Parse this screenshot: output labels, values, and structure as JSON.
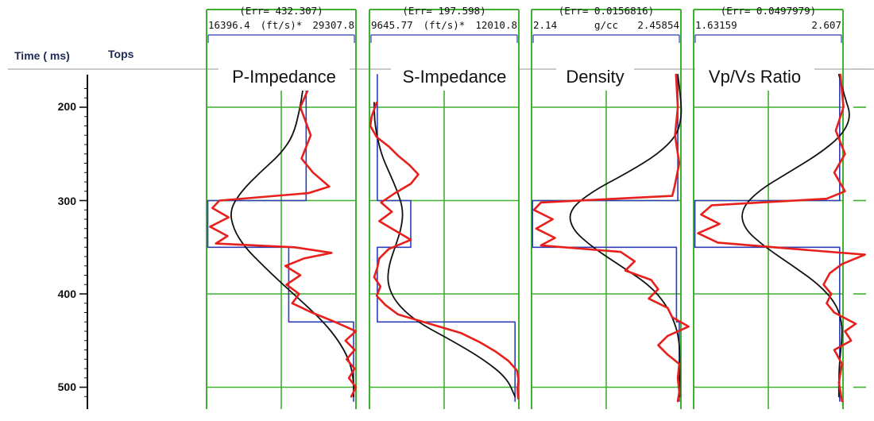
{
  "header": {
    "time_label": "Time ( ms)",
    "tops_label": "Tops"
  },
  "time_axis": {
    "ticks": [
      "200",
      "300",
      "400",
      "500"
    ]
  },
  "colors": {
    "grid": "#3fb02f",
    "model": "#2f3cb5",
    "inversion": "#e8201c",
    "initial": "#111111",
    "separator": "#aaaaaa",
    "text": "#111111"
  },
  "chart_data": [
    {
      "type": "line",
      "title": "P-Impedance",
      "err": "(Err= 432.307)",
      "xmin_label": "16396.4",
      "unit": "(ft/s)*",
      "xmax_label": "29307.8",
      "xlim": [
        16396.4,
        29307.8
      ],
      "ylim": [
        165,
        515
      ],
      "ylabel": "Time ( ms)",
      "series": [
        {
          "role": "model",
          "color": "#2f3cb5",
          "t": [
            165,
            300,
            300,
            350,
            350,
            430,
            430,
            515
          ],
          "x": [
            25000,
            25000,
            16500,
            16500,
            23500,
            23500,
            29100,
            29100
          ]
        },
        {
          "role": "inversion",
          "color": "#e8201c",
          "t": [
            165,
            180,
            200,
            230,
            255,
            270,
            285,
            292,
            300,
            308,
            318,
            328,
            338,
            346,
            350,
            356,
            362,
            370,
            380,
            390,
            400,
            410,
            420,
            430,
            440,
            450,
            460,
            470,
            480,
            490,
            500,
            510
          ],
          "x": [
            24800,
            25200,
            24500,
            25400,
            24600,
            25600,
            27000,
            25200,
            17500,
            16900,
            18300,
            16700,
            18200,
            17200,
            24000,
            27200,
            24800,
            23200,
            24500,
            23300,
            24400,
            23800,
            25500,
            27500,
            29300,
            28400,
            29200,
            28500,
            29200,
            28700,
            29300,
            28900
          ]
        },
        {
          "role": "initial",
          "color": "#111111",
          "t": [
            165,
            200,
            230,
            250,
            270,
            290,
            310,
            330,
            350,
            370,
            390,
            410,
            430,
            450,
            470,
            490,
            510
          ],
          "x": [
            24900,
            24500,
            23900,
            22800,
            21000,
            19400,
            18400,
            18700,
            19700,
            21300,
            23000,
            24800,
            26500,
            27800,
            28700,
            29100,
            29100
          ]
        }
      ]
    },
    {
      "type": "line",
      "title": "S-Impedance",
      "err": "(Err= 197.598)",
      "xmin_label": "9645.77",
      "unit": "(ft/s)*",
      "xmax_label": "12010.8",
      "xlim": [
        9645.77,
        12010.8
      ],
      "ylim": [
        165,
        515
      ],
      "ylabel": "Time ( ms)",
      "series": [
        {
          "role": "model",
          "color": "#2f3cb5",
          "t": [
            165,
            300,
            300,
            350,
            350,
            430,
            430,
            515
          ],
          "x": [
            9770,
            9770,
            10300,
            10300,
            9770,
            9770,
            11950,
            11950
          ]
        },
        {
          "role": "inversion",
          "color": "#e8201c",
          "t": [
            195,
            210,
            220,
            232,
            242,
            252,
            262,
            272,
            282,
            292,
            302,
            312,
            322,
            332,
            342,
            352,
            362,
            372,
            382,
            392,
            402,
            412,
            422,
            432,
            442,
            452,
            462,
            472,
            482,
            492,
            502,
            512
          ],
          "x": [
            9760,
            9680,
            9660,
            9760,
            9950,
            10100,
            10280,
            10420,
            10300,
            10050,
            9830,
            10000,
            9800,
            10050,
            10300,
            9950,
            9800,
            9770,
            9720,
            9820,
            9760,
            9900,
            10100,
            10600,
            11100,
            11400,
            11650,
            11850,
            11980,
            12005,
            11990,
            12000
          ]
        },
        {
          "role": "initial",
          "color": "#111111",
          "t": [
            195,
            220,
            250,
            270,
            290,
            310,
            330,
            350,
            370,
            390,
            410,
            430,
            450,
            470,
            490,
            510
          ],
          "x": [
            9720,
            9730,
            9830,
            9960,
            10090,
            10180,
            10150,
            10050,
            9950,
            9930,
            10070,
            10400,
            10950,
            11450,
            11820,
            11950
          ]
        }
      ]
    },
    {
      "type": "line",
      "title": "Density",
      "err": "(Err= 0.0156816)",
      "xmin_label": "2.14",
      "unit": "g/cc",
      "xmax_label": "2.45854",
      "xlim": [
        2.14,
        2.45854
      ],
      "ylim": [
        165,
        515
      ],
      "ylabel": "Time ( ms)",
      "series": [
        {
          "role": "model",
          "color": "#2f3cb5",
          "t": [
            165,
            300,
            300,
            350,
            350,
            430,
            430,
            515
          ],
          "x": [
            2.452,
            2.452,
            2.142,
            2.142,
            2.449,
            2.449,
            2.455,
            2.455
          ]
        },
        {
          "role": "inversion",
          "color": "#e8201c",
          "t": [
            165,
            200,
            230,
            260,
            285,
            295,
            302,
            310,
            320,
            330,
            340,
            348,
            355,
            365,
            375,
            385,
            395,
            405,
            415,
            425,
            435,
            445,
            455,
            465,
            475,
            490,
            505,
            515
          ],
          "x": [
            2.448,
            2.452,
            2.446,
            2.455,
            2.445,
            2.44,
            2.16,
            2.145,
            2.185,
            2.15,
            2.19,
            2.16,
            2.33,
            2.36,
            2.34,
            2.395,
            2.41,
            2.39,
            2.43,
            2.44,
            2.475,
            2.43,
            2.41,
            2.43,
            2.455,
            2.452,
            2.455,
            2.452
          ]
        },
        {
          "role": "initial",
          "color": "#111111",
          "t": [
            165,
            190,
            210,
            230,
            250,
            270,
            290,
            310,
            330,
            350,
            370,
            390,
            410,
            430,
            450,
            470,
            490,
            510
          ],
          "x": [
            2.452,
            2.458,
            2.46,
            2.45,
            2.41,
            2.345,
            2.27,
            2.22,
            2.225,
            2.27,
            2.33,
            2.39,
            2.425,
            2.445,
            2.455,
            2.456,
            2.456,
            2.456
          ]
        }
      ]
    },
    {
      "type": "line",
      "title": "Vp/Vs Ratio",
      "err": "(Err= 0.0497979)",
      "xmin_label": "1.63159",
      "unit": "",
      "xmax_label": "2.607",
      "xlim": [
        1.63159,
        2.607
      ],
      "ylim": [
        165,
        515
      ],
      "ylabel": "Time ( ms)",
      "series": [
        {
          "role": "model",
          "color": "#2f3cb5",
          "t": [
            165,
            300,
            300,
            350,
            350,
            430,
            430,
            515
          ],
          "x": [
            2.585,
            2.585,
            1.64,
            1.64,
            2.585,
            2.585,
            2.585,
            2.585
          ]
        },
        {
          "role": "inversion",
          "color": "#e8201c",
          "t": [
            165,
            200,
            225,
            250,
            270,
            290,
            298,
            305,
            315,
            325,
            335,
            345,
            352,
            358,
            368,
            378,
            390,
            400,
            410,
            420,
            432,
            440,
            450,
            460,
            475,
            495,
            515
          ],
          "x": [
            2.59,
            2.61,
            2.56,
            2.62,
            2.55,
            2.62,
            2.5,
            1.75,
            1.68,
            1.8,
            1.66,
            1.79,
            2.3,
            2.75,
            2.6,
            2.52,
            2.48,
            2.53,
            2.5,
            2.55,
            2.69,
            2.62,
            2.66,
            2.55,
            2.6,
            2.58,
            2.6
          ]
        },
        {
          "role": "initial",
          "color": "#111111",
          "t": [
            165,
            190,
            210,
            230,
            250,
            270,
            290,
            310,
            330,
            350,
            370,
            390,
            410,
            430,
            450,
            470,
            490,
            510
          ],
          "x": [
            2.58,
            2.62,
            2.66,
            2.6,
            2.45,
            2.25,
            2.05,
            1.94,
            1.96,
            2.1,
            2.28,
            2.45,
            2.56,
            2.6,
            2.6,
            2.585,
            2.58,
            2.58
          ]
        }
      ]
    }
  ]
}
